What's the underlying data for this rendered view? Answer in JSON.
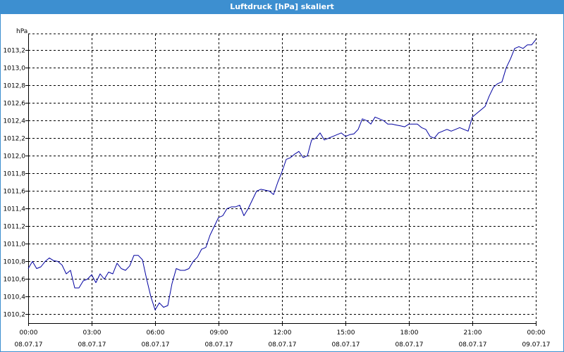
{
  "window": {
    "title": "Luftdruck [hPa] skaliert"
  },
  "chart_data": {
    "type": "line",
    "title": "Luftdruck [hPa] skaliert",
    "ylabel": "hPa",
    "xlabel": "",
    "grid": true,
    "xlim": [
      0,
      24
    ],
    "ylim": [
      1010.1,
      1013.45
    ],
    "yticks": [
      1010.2,
      1010.4,
      1010.6,
      1010.8,
      1011.0,
      1011.2,
      1011.4,
      1011.6,
      1011.8,
      1012.0,
      1012.2,
      1012.4,
      1012.6,
      1012.8,
      1013.0,
      1013.2
    ],
    "ytick_labels": [
      "1010,2",
      "1010,4",
      "1010,6",
      "1010,8",
      "1011,0",
      "1011,2",
      "1011,4",
      "1011,6",
      "1011,8",
      "1012,0",
      "1012,2",
      "1012,4",
      "1012,6",
      "1012,8",
      "1013,0",
      "1013,2"
    ],
    "xticks": [
      0,
      3,
      6,
      9,
      12,
      15,
      18,
      21,
      24
    ],
    "xtick_labels": [
      [
        "00:00",
        "08.07.17"
      ],
      [
        "03:00",
        "08.07.17"
      ],
      [
        "06:00",
        "08.07.17"
      ],
      [
        "09:00",
        "08.07.17"
      ],
      [
        "12:00",
        "08.07.17"
      ],
      [
        "15:00",
        "08.07.17"
      ],
      [
        "18:00",
        "08.07.17"
      ],
      [
        "21:00",
        "08.07.17"
      ],
      [
        "00:00",
        "09.07.17"
      ]
    ],
    "series": [
      {
        "color": "#0000a0",
        "x": [
          0.0,
          0.2,
          0.4,
          0.6,
          0.8,
          1.0,
          1.2,
          1.4,
          1.6,
          1.8,
          2.0,
          2.2,
          2.4,
          2.6,
          2.8,
          3.0,
          3.2,
          3.4,
          3.6,
          3.8,
          4.0,
          4.2,
          4.4,
          4.6,
          4.8,
          5.0,
          5.2,
          5.4,
          5.6,
          5.8,
          6.0,
          6.2,
          6.4,
          6.6,
          6.8,
          7.0,
          7.2,
          7.4,
          7.6,
          7.8,
          8.0,
          8.2,
          8.4,
          8.6,
          8.8,
          9.0,
          9.2,
          9.4,
          9.6,
          9.8,
          10.0,
          10.2,
          10.4,
          10.6,
          10.8,
          11.0,
          11.2,
          11.4,
          11.6,
          11.8,
          12.0,
          12.2,
          12.4,
          12.6,
          12.8,
          13.0,
          13.2,
          13.4,
          13.6,
          13.8,
          14.0,
          14.2,
          14.4,
          14.6,
          14.8,
          15.0,
          15.2,
          15.4,
          15.6,
          15.8,
          16.0,
          16.2,
          16.4,
          16.6,
          16.8,
          17.0,
          17.2,
          17.4,
          17.6,
          17.8,
          18.0,
          18.2,
          18.4,
          18.6,
          18.8,
          19.0,
          19.2,
          19.4,
          19.6,
          19.8,
          20.0,
          20.2,
          20.4,
          20.6,
          20.8,
          21.0,
          21.2,
          21.4,
          21.6,
          21.8,
          22.0,
          22.2,
          22.4,
          22.6,
          22.8,
          23.0,
          23.2,
          23.4,
          23.6,
          23.8,
          24.0
        ],
        "y": [
          1010.72,
          1010.8,
          1010.72,
          1010.74,
          1010.8,
          1010.84,
          1010.81,
          1010.8,
          1010.76,
          1010.66,
          1010.7,
          1010.5,
          1010.5,
          1010.58,
          1010.6,
          1010.65,
          1010.56,
          1010.66,
          1010.6,
          1010.68,
          1010.66,
          1010.78,
          1010.72,
          1010.7,
          1010.75,
          1010.87,
          1010.87,
          1010.82,
          1010.6,
          1010.4,
          1010.25,
          1010.33,
          1010.28,
          1010.3,
          1010.55,
          1010.72,
          1010.7,
          1010.7,
          1010.72,
          1010.8,
          1010.85,
          1010.94,
          1010.96,
          1011.1,
          1011.2,
          1011.3,
          1011.32,
          1011.4,
          1011.42,
          1011.42,
          1011.44,
          1011.32,
          1011.4,
          1011.5,
          1011.6,
          1011.62,
          1011.61,
          1011.6,
          1011.56,
          1011.7,
          1011.82,
          1011.96,
          1011.98,
          1012.02,
          1012.05,
          1011.98,
          1012.0,
          1012.18,
          1012.2,
          1012.26,
          1012.18,
          1012.2,
          1012.22,
          1012.24,
          1012.26,
          1012.22,
          1012.24,
          1012.25,
          1012.3,
          1012.42,
          1012.4,
          1012.36,
          1012.44,
          1012.42,
          1012.4,
          1012.36,
          1012.36,
          1012.35,
          1012.34,
          1012.33,
          1012.36,
          1012.36,
          1012.36,
          1012.32,
          1012.3,
          1012.22,
          1012.2,
          1012.26,
          1012.28,
          1012.3,
          1012.28,
          1012.3,
          1012.32,
          1012.3,
          1012.28,
          1012.44,
          1012.48,
          1012.52,
          1012.56,
          1012.68,
          1012.78,
          1012.82,
          1012.84,
          1013.0,
          1013.1,
          1013.22,
          1013.24,
          1013.22,
          1013.26,
          1013.26,
          1013.32
        ]
      }
    ]
  }
}
